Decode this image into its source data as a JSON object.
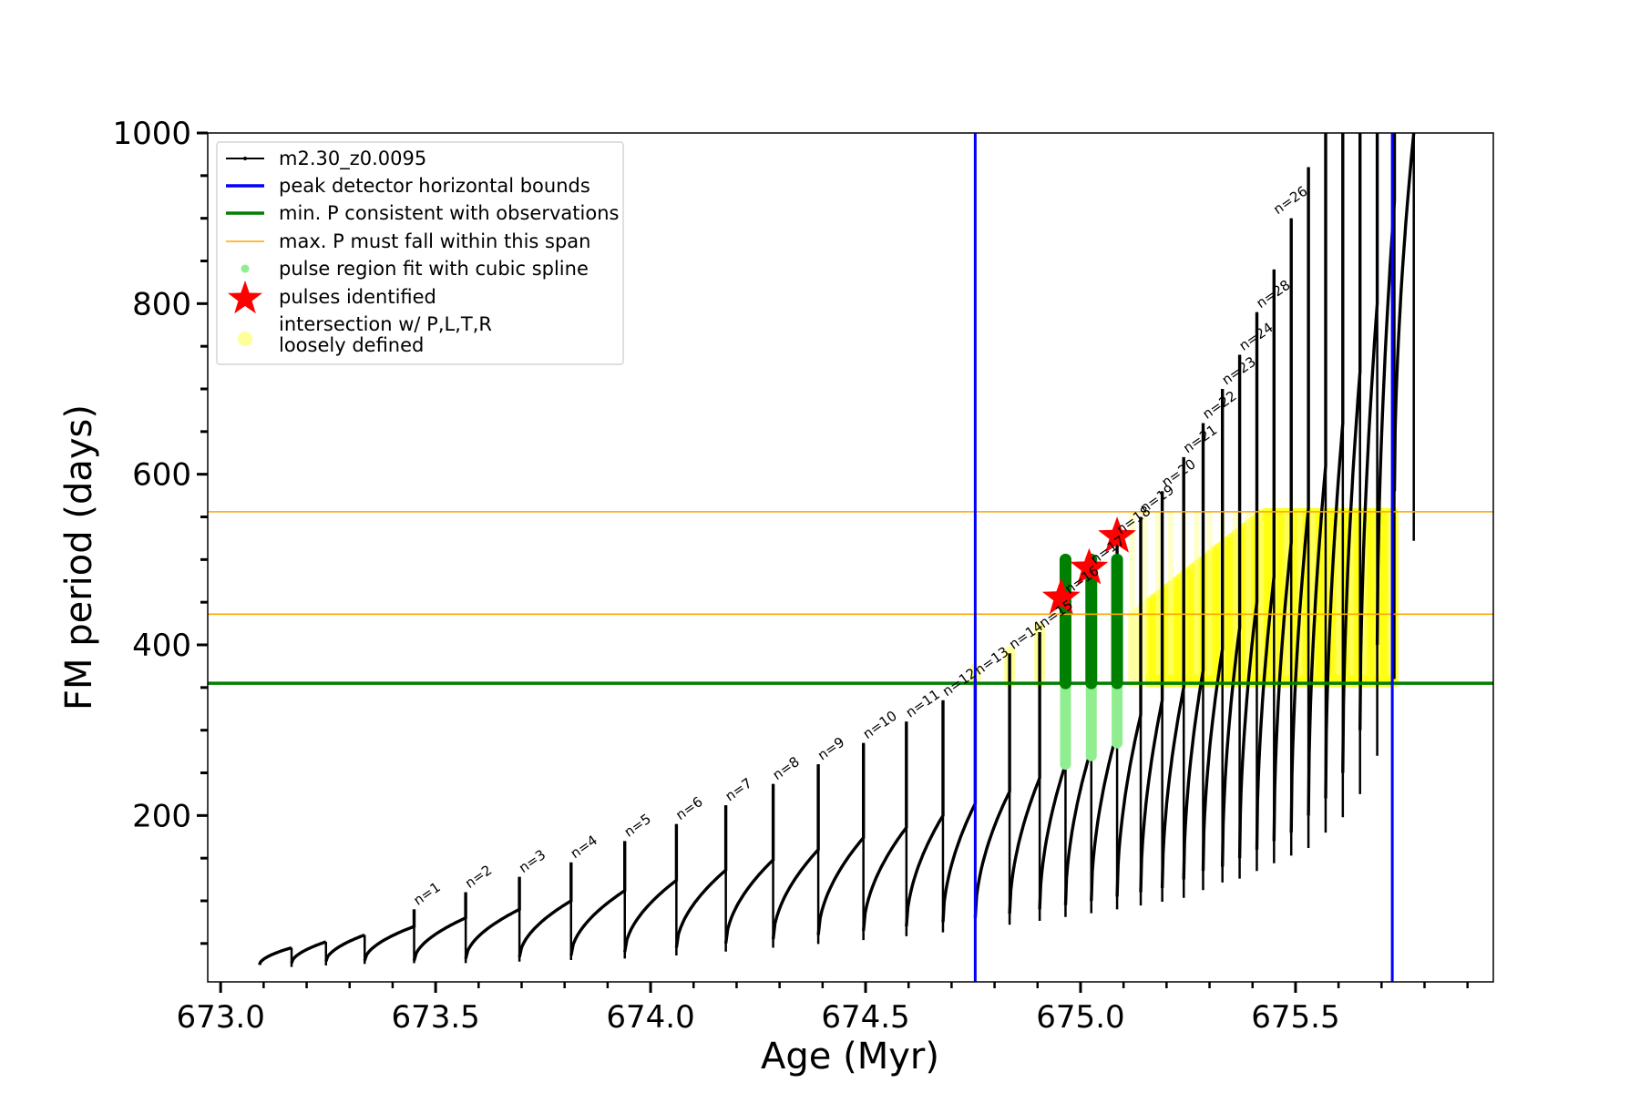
{
  "chart_data": {
    "type": "line",
    "title": "",
    "xlabel": "Age (Myr)",
    "ylabel": "FM period (days)",
    "xlim": [
      672.97,
      675.96
    ],
    "ylim": [
      5,
      1000
    ],
    "xticks": [
      "673.0",
      "673.5",
      "674.0",
      "674.5",
      "675.0",
      "675.5"
    ],
    "xtick_values": [
      673.0,
      673.5,
      674.0,
      674.5,
      675.0,
      675.5
    ],
    "yticks": [
      "200",
      "400",
      "600",
      "800",
      "1000"
    ],
    "ytick_values": [
      200,
      400,
      600,
      800,
      1000
    ],
    "grid": false,
    "legend_position": "top-left",
    "legend": [
      {
        "key": "track",
        "label": "m2.30_z0.0095",
        "color": "#000000"
      },
      {
        "key": "bounds",
        "label": "peak detector horizontal bounds",
        "color": "#0000ff"
      },
      {
        "key": "minp",
        "label": "min. P consistent with observations",
        "color": "#008000"
      },
      {
        "key": "maxp",
        "label": "max. P must fall within this span",
        "color": "#ffa500"
      },
      {
        "key": "spline",
        "label": "pulse region fit with cubic spline",
        "color": "#90ee90"
      },
      {
        "key": "pulses",
        "label": "pulses identified",
        "color": "#ff0000"
      },
      {
        "key": "intersect",
        "label": "intersection w/ P,L,T,R",
        "label2": "loosely defined",
        "color": "#ffff99"
      }
    ],
    "series": [
      {
        "name": "m2.30_z0.0095",
        "color": "#000000",
        "cycles": [
          {
            "start": 673.09,
            "end": 673.165,
            "low": 25,
            "high": 45,
            "peak": 45
          },
          {
            "start": 673.165,
            "end": 673.245,
            "low": 27,
            "high": 52,
            "peak": 52
          },
          {
            "start": 673.245,
            "end": 673.335,
            "low": 29,
            "high": 60,
            "peak": 60
          },
          {
            "start": 673.335,
            "end": 673.45,
            "low": 30,
            "high": 70,
            "peak": 90
          },
          {
            "start": 673.45,
            "end": 673.57,
            "low": 30,
            "high": 80,
            "peak": 110
          },
          {
            "start": 673.57,
            "end": 673.695,
            "low": 32,
            "high": 90,
            "peak": 128
          },
          {
            "start": 673.695,
            "end": 673.815,
            "low": 34,
            "high": 100,
            "peak": 145
          },
          {
            "start": 673.815,
            "end": 673.94,
            "low": 36,
            "high": 112,
            "peak": 170
          },
          {
            "start": 673.94,
            "end": 674.06,
            "low": 40,
            "high": 124,
            "peak": 190
          },
          {
            "start": 674.06,
            "end": 674.175,
            "low": 45,
            "high": 136,
            "peak": 212
          },
          {
            "start": 674.175,
            "end": 674.285,
            "low": 50,
            "high": 148,
            "peak": 237
          },
          {
            "start": 674.285,
            "end": 674.39,
            "low": 55,
            "high": 160,
            "peak": 260
          },
          {
            "start": 674.39,
            "end": 674.495,
            "low": 60,
            "high": 174,
            "peak": 285
          },
          {
            "start": 674.495,
            "end": 674.595,
            "low": 65,
            "high": 186,
            "peak": 310
          },
          {
            "start": 674.595,
            "end": 674.68,
            "low": 70,
            "high": 200,
            "peak": 335
          },
          {
            "start": 674.68,
            "end": 674.755,
            "low": 75,
            "high": 214,
            "peak": 360
          },
          {
            "start": 674.755,
            "end": 674.835,
            "low": 80,
            "high": 228,
            "peak": 390
          },
          {
            "start": 674.835,
            "end": 674.905,
            "low": 85,
            "high": 244,
            "peak": 415
          },
          {
            "start": 674.905,
            "end": 674.965,
            "low": 90,
            "high": 260,
            "peak": 455
          },
          {
            "start": 674.965,
            "end": 675.025,
            "low": 95,
            "high": 278,
            "peak": 490
          },
          {
            "start": 675.025,
            "end": 675.085,
            "low": 100,
            "high": 298,
            "peak": 525
          },
          {
            "start": 675.085,
            "end": 675.14,
            "low": 105,
            "high": 318,
            "peak": 550
          },
          {
            "start": 675.14,
            "end": 675.19,
            "low": 110,
            "high": 335,
            "peak": 580
          },
          {
            "start": 675.19,
            "end": 675.24,
            "low": 115,
            "high": 350,
            "peak": 620
          },
          {
            "start": 675.24,
            "end": 675.285,
            "low": 125,
            "high": 370,
            "peak": 660
          },
          {
            "start": 675.285,
            "end": 675.33,
            "low": 135,
            "high": 395,
            "peak": 700
          },
          {
            "start": 675.33,
            "end": 675.37,
            "low": 140,
            "high": 420,
            "peak": 740
          },
          {
            "start": 675.37,
            "end": 675.41,
            "low": 150,
            "high": 450,
            "peak": 790
          },
          {
            "start": 675.41,
            "end": 675.45,
            "low": 160,
            "high": 480,
            "peak": 840
          },
          {
            "start": 675.45,
            "end": 675.49,
            "low": 170,
            "high": 520,
            "peak": 900
          },
          {
            "start": 675.49,
            "end": 675.53,
            "low": 180,
            "high": 560,
            "peak": 960
          },
          {
            "start": 675.53,
            "end": 675.57,
            "low": 200,
            "high": 610,
            "peak": 1000
          },
          {
            "start": 675.57,
            "end": 675.61,
            "low": 220,
            "high": 660,
            "peak": 1000
          },
          {
            "start": 675.61,
            "end": 675.65,
            "low": 250,
            "high": 720,
            "peak": 1000
          },
          {
            "start": 675.65,
            "end": 675.69,
            "low": 300,
            "high": 800,
            "peak": 1000
          },
          {
            "start": 675.69,
            "end": 675.73,
            "low": 400,
            "high": 920,
            "peak": 1000
          },
          {
            "start": 675.73,
            "end": 675.775,
            "low": 580,
            "high": 1000,
            "peak": 1000
          }
        ]
      }
    ],
    "hlines": [
      {
        "key": "minp",
        "y": 355,
        "color": "#008000"
      },
      {
        "key": "maxp_low",
        "y": 436,
        "color": "#ffa500"
      },
      {
        "key": "maxp_high",
        "y": 556,
        "color": "#ffa500"
      }
    ],
    "vlines": [
      {
        "key": "bound_left",
        "x": 674.755,
        "color": "#0000ff"
      },
      {
        "key": "bound_right",
        "x": 675.725,
        "color": "#0000ff"
      }
    ],
    "pulses_identified": [
      {
        "x": 674.955,
        "y": 455
      },
      {
        "x": 675.02,
        "y": 490
      },
      {
        "x": 675.085,
        "y": 527
      }
    ],
    "spline_regions": [
      {
        "x": 674.965,
        "ymin": 260,
        "ymax": 500,
        "green_min": 355
      },
      {
        "x": 675.025,
        "ymin": 270,
        "ymax": 500,
        "green_min": 355
      },
      {
        "x": 675.085,
        "ymin": 285,
        "ymax": 500,
        "green_min": 355
      }
    ],
    "intersections": [
      {
        "x": 674.755,
        "ymin": 355,
        "ymax": 372
      },
      {
        "x": 674.835,
        "ymin": 355,
        "ymax": 392
      },
      {
        "x": 674.905,
        "ymin": 355,
        "ymax": 420
      }
    ],
    "intersection_band": {
      "x_start": 675.12,
      "x_end": 675.73,
      "ymin": 355,
      "ymax": 556
    },
    "pulse_labels": [
      {
        "text": "n=1",
        "x": 673.45,
        "y": 90
      },
      {
        "text": "n=2",
        "x": 673.57,
        "y": 110
      },
      {
        "text": "n=3",
        "x": 673.695,
        "y": 128
      },
      {
        "text": "n=4",
        "x": 673.815,
        "y": 145
      },
      {
        "text": "n=5",
        "x": 673.94,
        "y": 170
      },
      {
        "text": "n=6",
        "x": 674.06,
        "y": 190
      },
      {
        "text": "n=7",
        "x": 674.175,
        "y": 212
      },
      {
        "text": "n=8",
        "x": 674.285,
        "y": 237
      },
      {
        "text": "n=9",
        "x": 674.39,
        "y": 260
      },
      {
        "text": "n=10",
        "x": 674.495,
        "y": 285
      },
      {
        "text": "n=11",
        "x": 674.595,
        "y": 310
      },
      {
        "text": "n=12",
        "x": 674.68,
        "y": 335
      },
      {
        "text": "n=13",
        "x": 674.755,
        "y": 360
      },
      {
        "text": "n=14",
        "x": 674.835,
        "y": 390
      },
      {
        "text": "n=15",
        "x": 674.905,
        "y": 415
      },
      {
        "text": "n=16",
        "x": 674.965,
        "y": 455
      },
      {
        "text": "n=17",
        "x": 675.025,
        "y": 490
      },
      {
        "text": "n=18",
        "x": 675.085,
        "y": 525
      },
      {
        "text": "n=19",
        "x": 675.14,
        "y": 550
      },
      {
        "text": "n=20",
        "x": 675.19,
        "y": 580
      },
      {
        "text": "n=21",
        "x": 675.24,
        "y": 620
      },
      {
        "text": "n=22",
        "x": 675.285,
        "y": 660
      },
      {
        "text": "n=23",
        "x": 675.33,
        "y": 700
      },
      {
        "text": "n=24",
        "x": 675.37,
        "y": 740
      },
      {
        "text": "n=28",
        "x": 675.41,
        "y": 790
      },
      {
        "text": "n=26",
        "x": 675.45,
        "y": 900
      }
    ]
  }
}
